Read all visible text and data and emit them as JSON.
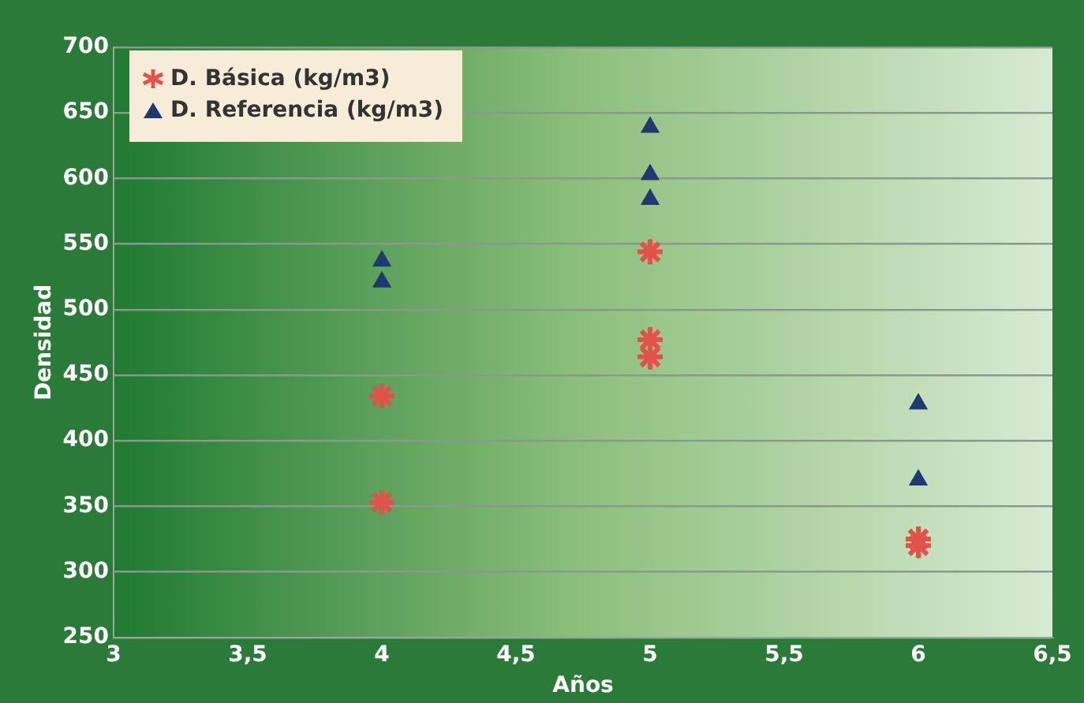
{
  "chart_data": {
    "type": "scatter",
    "xlabel": "Años",
    "ylabel": "Densidad",
    "xlim": [
      3,
      6.5
    ],
    "xticks": [
      {
        "value": 3,
        "label": "3"
      },
      {
        "value": 3.5,
        "label": "3,5"
      },
      {
        "value": 4,
        "label": "4"
      },
      {
        "value": 4.5,
        "label": "4,5"
      },
      {
        "value": 5,
        "label": "5"
      },
      {
        "value": 5.5,
        "label": "5,5"
      },
      {
        "value": 6,
        "label": "6"
      },
      {
        "value": 6.5,
        "label": "6,5"
      }
    ],
    "ylim": [
      250,
      700
    ],
    "yticks": [
      250,
      300,
      350,
      400,
      450,
      500,
      550,
      600,
      650,
      700
    ],
    "grid": "y",
    "legend": "top left",
    "series": [
      {
        "name": "D. Básica (kg/m3)",
        "color": "#e0524a",
        "marker": "cross",
        "x": [
          4,
          4,
          5,
          5,
          5,
          6,
          6
        ],
        "values": [
          434,
          353,
          544,
          477,
          464,
          325,
          320
        ]
      },
      {
        "name": "D. Referencia (kg/m3)",
        "color": "#1f3a6e",
        "marker": "triangle",
        "x": [
          4,
          4,
          5,
          5,
          5,
          6,
          6
        ],
        "values": [
          537,
          521,
          639,
          603,
          584,
          428,
          370
        ]
      }
    ]
  }
}
